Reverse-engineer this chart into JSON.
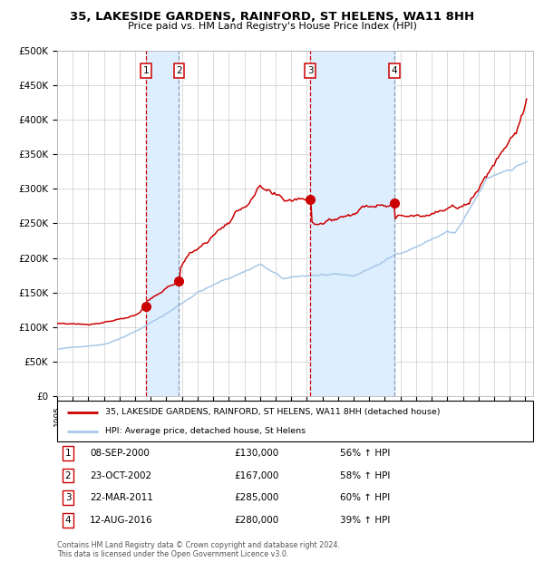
{
  "title1": "35, LAKESIDE GARDENS, RAINFORD, ST HELENS, WA11 8HH",
  "title2": "Price paid vs. HM Land Registry's House Price Index (HPI)",
  "ylim": [
    0,
    500000
  ],
  "yticks": [
    0,
    50000,
    100000,
    150000,
    200000,
    250000,
    300000,
    350000,
    400000,
    450000,
    500000
  ],
  "ytick_labels": [
    "£0",
    "£50K",
    "£100K",
    "£150K",
    "£200K",
    "£250K",
    "£300K",
    "£350K",
    "£400K",
    "£450K",
    "£500K"
  ],
  "background_color": "#ffffff",
  "grid_color": "#cccccc",
  "hpi_line_color": "#a8c8e8",
  "price_line_color": "#cc0000",
  "sale_marker_color": "#cc0000",
  "transactions": [
    {
      "num": 1,
      "date_num": 2000.69,
      "price": 130000,
      "label": "08-SEP-2000",
      "price_str": "£130,000",
      "hpi_str": "56% ↑ HPI"
    },
    {
      "num": 2,
      "date_num": 2002.81,
      "price": 167000,
      "label": "23-OCT-2002",
      "price_str": "£167,000",
      "hpi_str": "58% ↑ HPI"
    },
    {
      "num": 3,
      "date_num": 2011.22,
      "price": 285000,
      "label": "22-MAR-2011",
      "price_str": "£285,000",
      "hpi_str": "60% ↑ HPI"
    },
    {
      "num": 4,
      "date_num": 2016.61,
      "price": 280000,
      "label": "12-AUG-2016",
      "price_str": "£280,000",
      "hpi_str": "39% ↑ HPI"
    }
  ],
  "legend_line1": "35, LAKESIDE GARDENS, RAINFORD, ST HELENS, WA11 8HH (detached house)",
  "legend_line2": "HPI: Average price, detached house, St Helens",
  "footer1": "Contains HM Land Registry data © Crown copyright and database right 2024.",
  "footer2": "This data is licensed under the Open Government Licence v3.0.",
  "box_color": "#cc0000",
  "shade_color": "#ddeeff",
  "vline_color_bought": "#cc0000",
  "vline_color_sold": "#8899bb",
  "xlim_start": 1995,
  "xlim_end": 2025.5
}
